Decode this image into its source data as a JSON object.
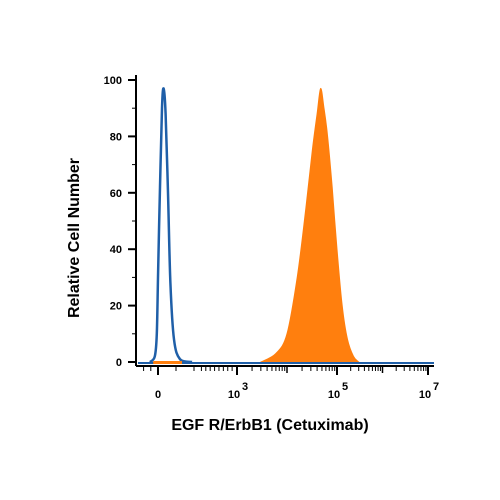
{
  "chart_data": {
    "type": "area",
    "xlabel": "EGF R/ErbB1 (Cetuximab)",
    "ylabel": "Relative Cell Number",
    "y_ticks": [
      0,
      20,
      40,
      60,
      80,
      100
    ],
    "ylim": [
      0,
      100
    ],
    "x_scale": "biexponential",
    "x_ticks": [
      {
        "value": 0,
        "label": "0",
        "exp": ""
      },
      {
        "value": 1000,
        "label": "10",
        "exp": "3"
      },
      {
        "value": 100000,
        "label": "10",
        "exp": "5"
      },
      {
        "value": 10000000,
        "label": "10",
        "exp": "7"
      }
    ],
    "grid": false,
    "legend": "none",
    "series": [
      {
        "style": "outline",
        "color": "#1f5fa8",
        "points": [
          [
            -100,
            0
          ],
          [
            -40,
            2
          ],
          [
            -15,
            10
          ],
          [
            0,
            30
          ],
          [
            10,
            62
          ],
          [
            20,
            90
          ],
          [
            28,
            97
          ],
          [
            38,
            88
          ],
          [
            50,
            60
          ],
          [
            62,
            28
          ],
          [
            80,
            8
          ],
          [
            110,
            1
          ],
          [
            170,
            0
          ]
        ]
      },
      {
        "style": "filled",
        "color": "#ff7f0e",
        "points": [
          [
            3000,
            0
          ],
          [
            6000,
            3
          ],
          [
            10000,
            10
          ],
          [
            16000,
            30
          ],
          [
            24000,
            55
          ],
          [
            32000,
            75
          ],
          [
            40000,
            88
          ],
          [
            47000,
            97
          ],
          [
            55000,
            90
          ],
          [
            65000,
            80
          ],
          [
            80000,
            62
          ],
          [
            100000,
            40
          ],
          [
            130000,
            20
          ],
          [
            170000,
            8
          ],
          [
            230000,
            2
          ],
          [
            300000,
            0
          ]
        ]
      }
    ]
  }
}
